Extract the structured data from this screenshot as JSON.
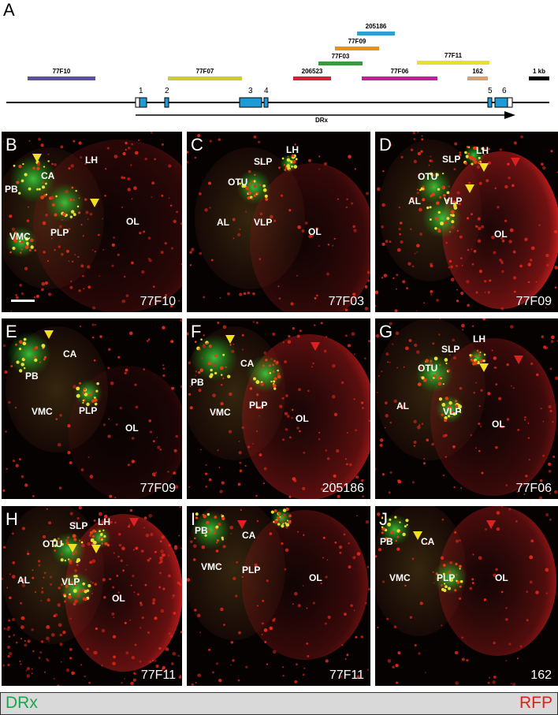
{
  "panel_a": {
    "letter": "A",
    "scale_label": "1 kb",
    "gene_label": "DRx",
    "exon_numbers": [
      "1",
      "2",
      "3",
      "4",
      "5",
      "6"
    ],
    "fragments": [
      {
        "id": "205186",
        "color": "#2a9fd6"
      },
      {
        "id": "77F09",
        "color": "#e8901a"
      },
      {
        "id": "77F03",
        "color": "#3a9a3a"
      },
      {
        "id": "77F11",
        "color": "#e8e030"
      },
      {
        "id": "77F10",
        "color": "#5a52a0"
      },
      {
        "id": "77F07",
        "color": "#cccc30"
      },
      {
        "id": "206523",
        "color": "#d8203a"
      },
      {
        "id": "77F06",
        "color": "#c020a0"
      },
      {
        "id": "162",
        "color": "#d8a070"
      }
    ]
  },
  "panels": [
    {
      "letter": "B",
      "id": "77F10",
      "labels": [
        "PB",
        "CA",
        "LH",
        "VMC",
        "PLP",
        "OL"
      ]
    },
    {
      "letter": "C",
      "id": "77F03",
      "labels": [
        "SLP",
        "LH",
        "OTU",
        "AL",
        "VLP",
        "OL"
      ]
    },
    {
      "letter": "D",
      "id": "77F09",
      "labels": [
        "SLP",
        "LH",
        "OTU",
        "AL",
        "VLP",
        "OL"
      ]
    },
    {
      "letter": "E",
      "id": "77F09",
      "labels": [
        "CA",
        "PB",
        "VMC",
        "PLP",
        "OL"
      ]
    },
    {
      "letter": "F",
      "id": "205186",
      "labels": [
        "PB",
        "CA",
        "VMC",
        "PLP",
        "OL"
      ]
    },
    {
      "letter": "G",
      "id": "77F06",
      "labels": [
        "SLP",
        "LH",
        "OTU",
        "AL",
        "VLP",
        "OL"
      ]
    },
    {
      "letter": "H",
      "id": "77F11",
      "labels": [
        "SLP",
        "LH",
        "OTU",
        "AL",
        "VLP",
        "OL"
      ]
    },
    {
      "letter": "I",
      "id": "77F11",
      "labels": [
        "PB",
        "CA",
        "VMC",
        "PLP",
        "OL"
      ]
    },
    {
      "letter": "J",
      "id": "162",
      "labels": [
        "PB",
        "CA",
        "VMC",
        "PLP",
        "OL"
      ]
    }
  ],
  "legend": {
    "left": "DRx",
    "right": "RFP",
    "left_color": "#1aa64a",
    "right_color": "#e0201a"
  }
}
